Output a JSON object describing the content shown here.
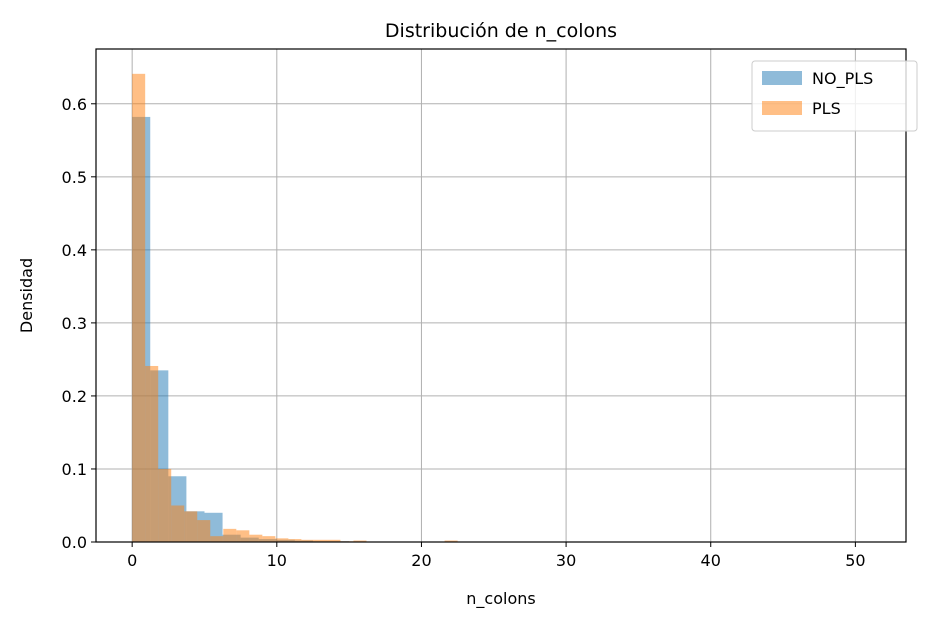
{
  "chart_data": {
    "type": "bar",
    "title": "Distribución de n_colons",
    "xlabel": "n_colons",
    "ylabel": "Densidad",
    "xlim": [
      -2.5,
      53.5
    ],
    "ylim": [
      0,
      0.675
    ],
    "xticks": [
      0,
      10,
      20,
      30,
      40,
      50
    ],
    "yticks": [
      0.0,
      0.1,
      0.2,
      0.3,
      0.4,
      0.5,
      0.6
    ],
    "ytick_labels": [
      "0.0",
      "0.1",
      "0.2",
      "0.3",
      "0.4",
      "0.5",
      "0.6"
    ],
    "grid": true,
    "legend_position": "top-right",
    "series": [
      {
        "name": "NO_PLS",
        "color": "#1f77b4",
        "opacity": 0.5,
        "bins": [
          {
            "x0": 0.0,
            "x1": 1.25,
            "y": 0.582
          },
          {
            "x0": 1.25,
            "x1": 2.5,
            "y": 0.235
          },
          {
            "x0": 2.5,
            "x1": 3.75,
            "y": 0.09
          },
          {
            "x0": 3.75,
            "x1": 5.0,
            "y": 0.042
          },
          {
            "x0": 5.0,
            "x1": 6.25,
            "y": 0.04
          },
          {
            "x0": 6.25,
            "x1": 7.5,
            "y": 0.01
          },
          {
            "x0": 7.5,
            "x1": 8.75,
            "y": 0.006
          },
          {
            "x0": 8.75,
            "x1": 10.0,
            "y": 0.004
          },
          {
            "x0": 10.0,
            "x1": 11.25,
            "y": 0.003
          },
          {
            "x0": 11.25,
            "x1": 12.5,
            "y": 0.002
          },
          {
            "x0": 12.5,
            "x1": 13.75,
            "y": 0.001
          },
          {
            "x0": 13.75,
            "x1": 15.0,
            "y": 0.001
          }
        ]
      },
      {
        "name": "PLS",
        "color": "#ff7f0e",
        "opacity": 0.5,
        "bins": [
          {
            "x0": 0.0,
            "x1": 0.9,
            "y": 0.641
          },
          {
            "x0": 0.9,
            "x1": 1.8,
            "y": 0.241
          },
          {
            "x0": 1.8,
            "x1": 2.7,
            "y": 0.1
          },
          {
            "x0": 2.7,
            "x1": 3.6,
            "y": 0.05
          },
          {
            "x0": 3.6,
            "x1": 4.5,
            "y": 0.042
          },
          {
            "x0": 4.5,
            "x1": 5.4,
            "y": 0.03
          },
          {
            "x0": 5.4,
            "x1": 6.3,
            "y": 0.008
          },
          {
            "x0": 6.3,
            "x1": 7.2,
            "y": 0.018
          },
          {
            "x0": 7.2,
            "x1": 8.1,
            "y": 0.016
          },
          {
            "x0": 8.1,
            "x1": 9.0,
            "y": 0.01
          },
          {
            "x0": 9.0,
            "x1": 9.9,
            "y": 0.008
          },
          {
            "x0": 9.9,
            "x1": 10.8,
            "y": 0.005
          },
          {
            "x0": 10.8,
            "x1": 11.7,
            "y": 0.004
          },
          {
            "x0": 11.7,
            "x1": 12.6,
            "y": 0.003
          },
          {
            "x0": 12.6,
            "x1": 13.5,
            "y": 0.003
          },
          {
            "x0": 13.5,
            "x1": 14.4,
            "y": 0.003
          },
          {
            "x0": 14.4,
            "x1": 15.3,
            "y": 0.001
          },
          {
            "x0": 15.3,
            "x1": 16.2,
            "y": 0.002
          },
          {
            "x0": 21.6,
            "x1": 22.5,
            "y": 0.002
          }
        ]
      }
    ]
  }
}
